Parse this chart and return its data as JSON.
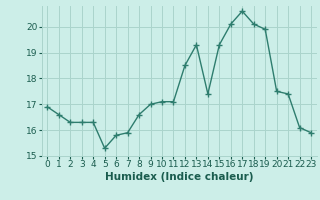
{
  "x": [
    0,
    1,
    2,
    3,
    4,
    5,
    6,
    7,
    8,
    9,
    10,
    11,
    12,
    13,
    14,
    15,
    16,
    17,
    18,
    19,
    20,
    21,
    22,
    23
  ],
  "y": [
    16.9,
    16.6,
    16.3,
    16.3,
    16.3,
    15.3,
    15.8,
    15.9,
    16.6,
    17.0,
    17.1,
    17.1,
    18.5,
    19.3,
    17.4,
    19.3,
    20.1,
    20.6,
    20.1,
    19.9,
    17.5,
    17.4,
    16.1,
    15.9
  ],
  "line_color": "#2e7d6e",
  "marker": "+",
  "marker_size": 4,
  "bg_color": "#cceee8",
  "grid_color": "#aad4cc",
  "tick_color": "#1a5c4e",
  "xlabel": "Humidex (Indice chaleur)",
  "xlim": [
    -0.5,
    23.5
  ],
  "ylim": [
    15,
    20.8
  ],
  "yticks": [
    15,
    16,
    17,
    18,
    19,
    20
  ],
  "xticks": [
    0,
    1,
    2,
    3,
    4,
    5,
    6,
    7,
    8,
    9,
    10,
    11,
    12,
    13,
    14,
    15,
    16,
    17,
    18,
    19,
    20,
    21,
    22,
    23
  ],
  "xlabel_fontsize": 7.5,
  "tick_fontsize": 6.5,
  "lw": 1.0
}
